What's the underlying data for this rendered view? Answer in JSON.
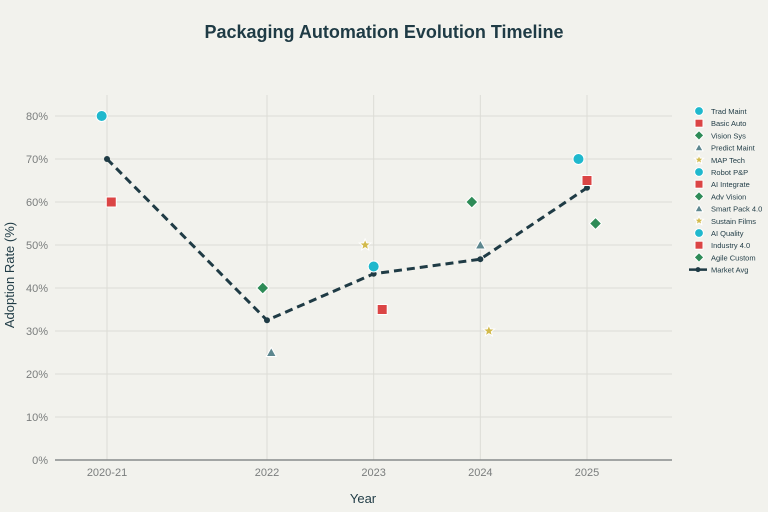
{
  "chart_data": {
    "type": "scatter",
    "title": "Packaging Automation Evolution Timeline",
    "xlabel": "Year",
    "ylabel": "Adoption Rate (%)",
    "xlim": [
      2019.9,
      2025.8
    ],
    "ylim": [
      0,
      85
    ],
    "grid": true,
    "legend_position": "right",
    "x_ticks": [
      {
        "value": 2020.5,
        "label": "2020-21"
      },
      {
        "value": 2022,
        "label": "2022"
      },
      {
        "value": 2023,
        "label": "2023"
      },
      {
        "value": 2024,
        "label": "2024"
      },
      {
        "value": 2025,
        "label": "2025"
      }
    ],
    "y_ticks": [
      {
        "value": 0,
        "label": "0%"
      },
      {
        "value": 10,
        "label": "10%"
      },
      {
        "value": 20,
        "label": "20%"
      },
      {
        "value": 30,
        "label": "30%"
      },
      {
        "value": 40,
        "label": "40%"
      },
      {
        "value": 50,
        "label": "50%"
      },
      {
        "value": 60,
        "label": "60%"
      },
      {
        "value": 70,
        "label": "70%"
      },
      {
        "value": 80,
        "label": "80%"
      }
    ],
    "series": [
      {
        "name": "Trad Maint",
        "marker": "circle",
        "color": "#1fb8cd",
        "x": 2020.45,
        "y": 80
      },
      {
        "name": "Basic Auto",
        "marker": "square",
        "color": "#db4545",
        "x": 2020.54,
        "y": 60
      },
      {
        "name": "Vision Sys",
        "marker": "diamond",
        "color": "#2e8b57",
        "x": 2021.96,
        "y": 40
      },
      {
        "name": "Predict Maint",
        "marker": "triangle",
        "color": "#5d878f",
        "x": 2022.04,
        "y": 25
      },
      {
        "name": "MAP Tech",
        "marker": "star",
        "color": "#d2ba4c",
        "x": 2022.92,
        "y": 50
      },
      {
        "name": "Robot P&P",
        "marker": "circle",
        "color": "#1fb8cd",
        "x": 2023.0,
        "y": 45
      },
      {
        "name": "AI Integrate",
        "marker": "square",
        "color": "#db4545",
        "x": 2023.08,
        "y": 35
      },
      {
        "name": "Adv Vision",
        "marker": "diamond",
        "color": "#2e8b57",
        "x": 2023.92,
        "y": 60
      },
      {
        "name": "Smart Pack 4.0",
        "marker": "triangle",
        "color": "#5d878f",
        "x": 2024.0,
        "y": 50
      },
      {
        "name": "Sustain Films",
        "marker": "star",
        "color": "#d2ba4c",
        "x": 2024.08,
        "y": 30
      },
      {
        "name": "AI Quality",
        "marker": "circle",
        "color": "#1fb8cd",
        "x": 2024.92,
        "y": 70
      },
      {
        "name": "Industry 4.0",
        "marker": "square",
        "color": "#db4545",
        "x": 2025.0,
        "y": 65
      },
      {
        "name": "Agile Custom",
        "marker": "diamond",
        "color": "#2e8b57",
        "x": 2025.08,
        "y": 55
      }
    ],
    "line_series": {
      "name": "Market Avg",
      "color": "#1f3b45",
      "style": "dashed",
      "x": [
        2020.5,
        2022,
        2023,
        2024,
        2025
      ],
      "y": [
        70,
        32.5,
        43.3,
        46.7,
        63.3
      ]
    }
  }
}
